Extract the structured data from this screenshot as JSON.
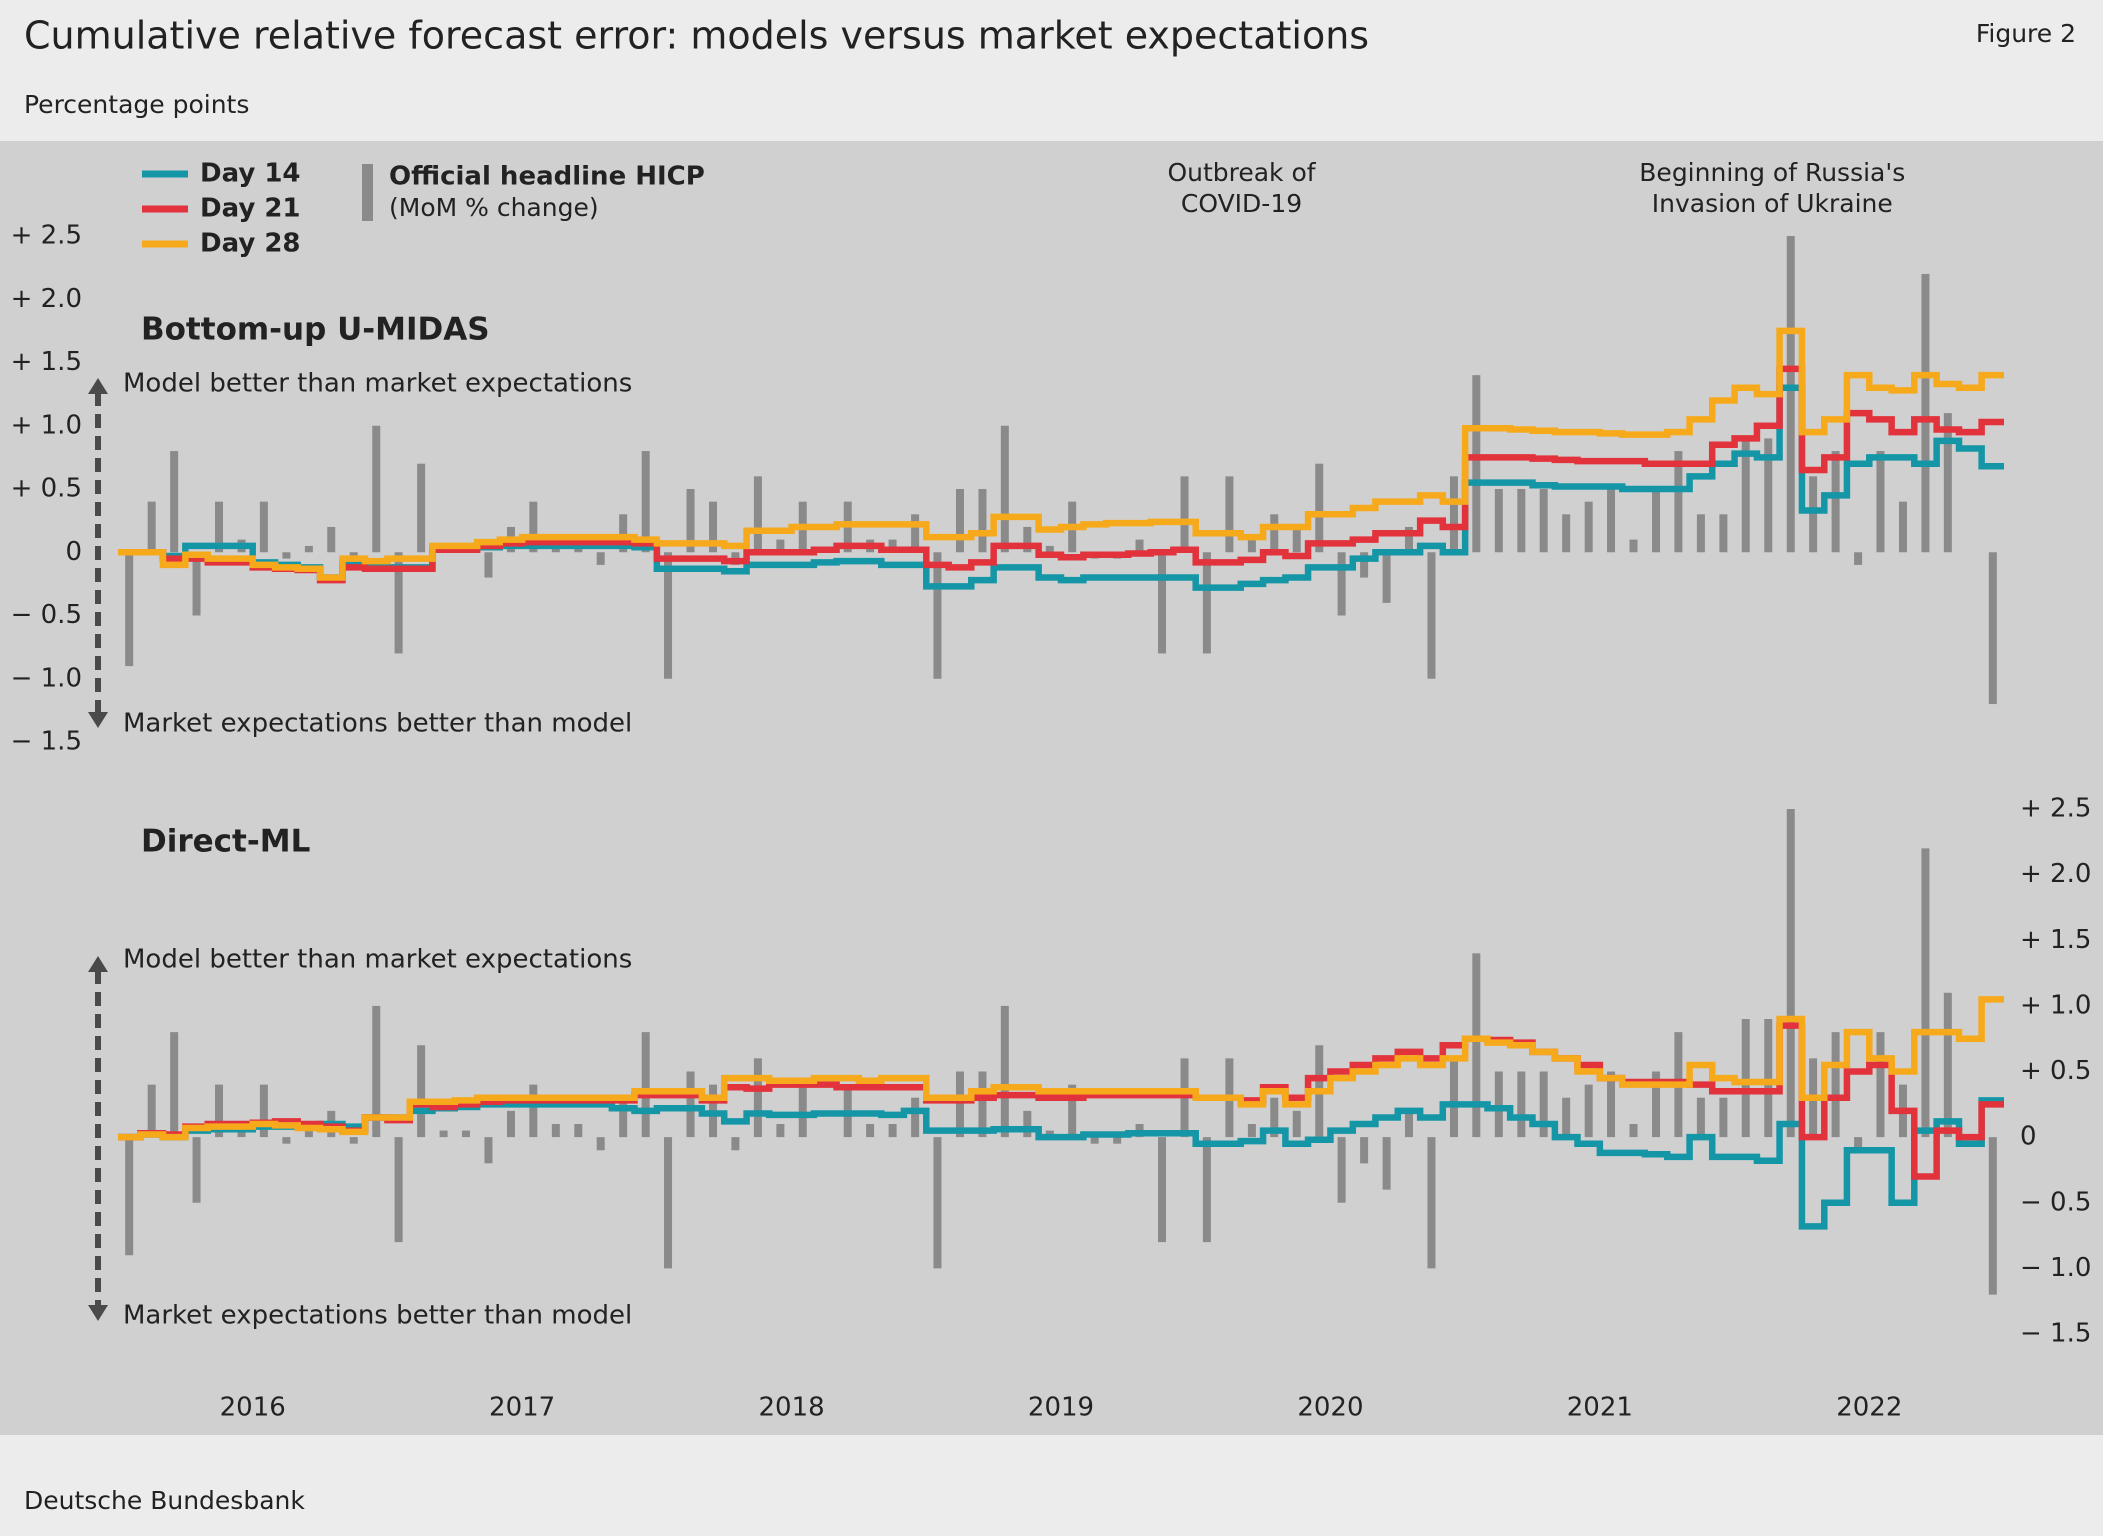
{
  "chart_data": {
    "type": "line",
    "title": "Cumulative relative forecast error: models versus market expectations",
    "subtitle": "Percentage points",
    "figure_label": "Figure 2",
    "source": "Deutsche Bundesbank",
    "xlim": [
      2016,
      2023
    ],
    "xticks": [
      {
        "value": 2016.5,
        "label": "2016"
      },
      {
        "value": 2017.5,
        "label": "2017"
      },
      {
        "value": 2018.5,
        "label": "2018"
      },
      {
        "value": 2019.5,
        "label": "2019"
      },
      {
        "value": 2020.5,
        "label": "2020"
      },
      {
        "value": 2021.5,
        "label": "2021"
      },
      {
        "value": 2022.5,
        "label": "2022"
      }
    ],
    "xgrid": [
      2016,
      2017,
      2018,
      2019,
      2020,
      2021,
      2022,
      2023
    ],
    "x": [
      2016,
      2016.083,
      2016.167,
      2016.25,
      2016.333,
      2016.417,
      2016.5,
      2016.583,
      2016.667,
      2016.75,
      2016.833,
      2016.917,
      2017,
      2017.083,
      2017.167,
      2017.25,
      2017.333,
      2017.417,
      2017.5,
      2017.583,
      2017.667,
      2017.75,
      2017.833,
      2017.917,
      2018,
      2018.083,
      2018.167,
      2018.25,
      2018.333,
      2018.417,
      2018.5,
      2018.583,
      2018.667,
      2018.75,
      2018.833,
      2018.917,
      2019,
      2019.083,
      2019.167,
      2019.25,
      2019.333,
      2019.417,
      2019.5,
      2019.583,
      2019.667,
      2019.75,
      2019.833,
      2019.917,
      2020,
      2020.083,
      2020.167,
      2020.25,
      2020.333,
      2020.417,
      2020.5,
      2020.583,
      2020.667,
      2020.75,
      2020.833,
      2020.917,
      2021,
      2021.083,
      2021.167,
      2021.25,
      2021.333,
      2021.417,
      2021.5,
      2021.583,
      2021.667,
      2021.75,
      2021.833,
      2021.917,
      2022,
      2022.083,
      2022.167,
      2022.25,
      2022.333,
      2022.417,
      2022.5,
      2022.583,
      2022.667,
      2022.75,
      2022.833,
      2022.917
    ],
    "series": [
      {
        "name": "Day 14",
        "color": "#1596a6"
      },
      {
        "name": "Day 21",
        "color": "#e2323b"
      },
      {
        "name": "Day 28",
        "color": "#f7a91c"
      }
    ],
    "bars": {
      "name": "Official headline HICP",
      "note": "(MoM % change)",
      "color": "#8a8a8a",
      "values": [
        -0.9,
        0.4,
        0.8,
        -0.5,
        0.4,
        0.1,
        0.4,
        -0.05,
        0.05,
        0.2,
        -0.05,
        1.0,
        -0.8,
        0.7,
        0.05,
        0.05,
        -0.2,
        0.2,
        0.4,
        0.1,
        0.1,
        -0.1,
        0.3,
        0.8,
        -1.0,
        0.5,
        0.4,
        -0.1,
        0.6,
        0.1,
        0.4,
        0,
        0.4,
        0.1,
        0.1,
        0.3,
        -1.0,
        0.5,
        0.5,
        1.0,
        0.2,
        0.05,
        0.4,
        -0.05,
        -0.05,
        0.1,
        -0.8,
        0.6,
        -0.8,
        0.6,
        0.1,
        0.3,
        0.2,
        0.7,
        -0.5,
        -0.2,
        -0.4,
        0.2,
        -1.0,
        0.6,
        1.4,
        0.5,
        0.5,
        0.5,
        0.3,
        0.4,
        0.5,
        0.1,
        0.5,
        0.8,
        0.3,
        0.3,
        0.9,
        0.9,
        2.5,
        0.6,
        0.8,
        -0.1,
        0.8,
        0.4,
        2.2,
        1.1,
        0,
        -1.2
      ]
    },
    "events": [
      {
        "x": 2020.17,
        "label": [
          "Outbreak of",
          "COVID-19"
        ]
      },
      {
        "x": 2022.14,
        "label": [
          "Beginning of Russia's",
          "Invasion of Ukraine"
        ]
      }
    ],
    "panels": [
      {
        "title": "Bottom-up U-MIDAS",
        "axis_side": "left",
        "annotation_up": "Model better than market expectations",
        "annotation_down": "Market expectations better than model",
        "ylim": [
          -1.5,
          2.5
        ],
        "yticks": [
          {
            "value": 2.5,
            "label": "+ 2.5"
          },
          {
            "value": 2,
            "label": "+ 2.0"
          },
          {
            "value": 1.5,
            "label": "+ 1.5"
          },
          {
            "value": 1,
            "label": "+ 1.0"
          },
          {
            "value": 0.5,
            "label": "+ 0.5"
          },
          0,
          {
            "value": -0.5,
            "label": "− 0.5"
          },
          {
            "value": -1,
            "label": "− 1.0"
          },
          {
            "value": -1.5,
            "label": "− 1.5"
          }
        ],
        "values": [
          [
            0,
            0,
            -0.03,
            0.05,
            0.05,
            0.05,
            -0.08,
            -0.1,
            -0.12,
            -0.2,
            -0.1,
            -0.1,
            -0.12,
            -0.12,
            0.03,
            0.03,
            0.04,
            0.05,
            0.05,
            0.05,
            0.05,
            0.05,
            0.05,
            0.04,
            -0.13,
            -0.13,
            -0.13,
            -0.15,
            -0.1,
            -0.1,
            -0.1,
            -0.08,
            -0.07,
            -0.07,
            -0.1,
            -0.1,
            -0.27,
            -0.27,
            -0.22,
            -0.12,
            -0.12,
            -0.2,
            -0.22,
            -0.2,
            -0.2,
            -0.2,
            -0.2,
            -0.2,
            -0.28,
            -0.28,
            -0.25,
            -0.22,
            -0.2,
            -0.12,
            -0.12,
            -0.05,
            0,
            0,
            0.05,
            0,
            0.55,
            0.55,
            0.55,
            0.53,
            0.52,
            0.52,
            0.52,
            0.5,
            0.5,
            0.5,
            0.6,
            0.7,
            0.78,
            0.75,
            1.3,
            0.33,
            0.45,
            0.7,
            0.75,
            0.75,
            0.7,
            0.88,
            0.82,
            0.68
          ],
          [
            0,
            0,
            -0.05,
            -0.05,
            -0.08,
            -0.08,
            -0.12,
            -0.13,
            -0.14,
            -0.22,
            -0.12,
            -0.13,
            -0.13,
            -0.13,
            0.02,
            0.02,
            0.05,
            0.07,
            0.08,
            0.08,
            0.08,
            0.08,
            0.08,
            0.07,
            -0.05,
            -0.05,
            -0.05,
            -0.07,
            0,
            0,
            0,
            0.02,
            0.05,
            0.05,
            0.02,
            0.02,
            -0.1,
            -0.12,
            -0.08,
            0.05,
            0.05,
            -0.02,
            -0.04,
            -0.02,
            -0.02,
            -0.01,
            0,
            0.02,
            -0.08,
            -0.08,
            -0.06,
            0,
            -0.03,
            0.07,
            0.07,
            0.1,
            0.15,
            0.15,
            0.25,
            0.2,
            0.75,
            0.75,
            0.75,
            0.74,
            0.73,
            0.72,
            0.72,
            0.72,
            0.7,
            0.7,
            0.7,
            0.85,
            0.9,
            1.0,
            1.45,
            0.65,
            0.75,
            1.1,
            1.05,
            0.95,
            1.05,
            0.97,
            0.95,
            1.03
          ],
          [
            0,
            0,
            -0.1,
            -0.02,
            -0.05,
            -0.05,
            -0.1,
            -0.12,
            -0.13,
            -0.2,
            -0.05,
            -0.07,
            -0.05,
            -0.05,
            0.05,
            0.05,
            0.08,
            0.1,
            0.12,
            0.12,
            0.12,
            0.12,
            0.12,
            0.1,
            0.07,
            0.07,
            0.07,
            0.05,
            0.17,
            0.17,
            0.2,
            0.2,
            0.22,
            0.22,
            0.22,
            0.22,
            0.12,
            0.12,
            0.15,
            0.28,
            0.28,
            0.18,
            0.2,
            0.22,
            0.23,
            0.23,
            0.24,
            0.24,
            0.15,
            0.15,
            0.12,
            0.2,
            0.2,
            0.3,
            0.3,
            0.35,
            0.4,
            0.4,
            0.45,
            0.4,
            0.98,
            0.98,
            0.97,
            0.96,
            0.95,
            0.95,
            0.94,
            0.93,
            0.93,
            0.95,
            1.05,
            1.2,
            1.3,
            1.25,
            1.75,
            0.95,
            1.05,
            1.4,
            1.3,
            1.28,
            1.4,
            1.33,
            1.3,
            1.4
          ]
        ]
      },
      {
        "title": "Direct-ML",
        "axis_side": "right",
        "annotation_up": "Model better than market expectations",
        "annotation_down": "Market expectations better than model",
        "ylim": [
          -1.5,
          2.5
        ],
        "yticks": [
          {
            "value": 2.5,
            "label": "+ 2.5"
          },
          {
            "value": 2,
            "label": "+ 2.0"
          },
          {
            "value": 1.5,
            "label": "+ 1.5"
          },
          {
            "value": 1,
            "label": "+ 1.0"
          },
          {
            "value": 0.5,
            "label": "+ 0.5"
          },
          0,
          {
            "value": -0.5,
            "label": "− 0.5"
          },
          {
            "value": -1,
            "label": "− 1.0"
          },
          {
            "value": -1.5,
            "label": "− 1.5"
          }
        ],
        "values": [
          [
            0,
            0.02,
            0,
            0.05,
            0.06,
            0.06,
            0.08,
            0.08,
            0.08,
            0.1,
            0.08,
            0.15,
            0.15,
            0.2,
            0.22,
            0.23,
            0.25,
            0.25,
            0.25,
            0.25,
            0.25,
            0.25,
            0.22,
            0.2,
            0.22,
            0.22,
            0.18,
            0.12,
            0.18,
            0.17,
            0.17,
            0.18,
            0.18,
            0.18,
            0.17,
            0.2,
            0.05,
            0.05,
            0.05,
            0.06,
            0.06,
            0,
            0,
            0.02,
            0.02,
            0.03,
            0.03,
            0.03,
            -0.05,
            -0.05,
            -0.03,
            0.05,
            -0.05,
            -0.02,
            0.05,
            0.1,
            0.15,
            0.2,
            0.15,
            0.25,
            0.25,
            0.22,
            0.15,
            0.1,
            0,
            -0.05,
            -0.12,
            -0.12,
            -0.13,
            -0.15,
            0,
            -0.15,
            -0.15,
            -0.18,
            0.1,
            -0.68,
            -0.5,
            -0.1,
            -0.1,
            -0.5,
            0.05,
            0.12,
            -0.05,
            0.28
          ],
          [
            0,
            0.03,
            0.02,
            0.08,
            0.1,
            0.1,
            0.11,
            0.12,
            0.1,
            0.08,
            0.05,
            0.15,
            0.13,
            0.25,
            0.23,
            0.25,
            0.27,
            0.28,
            0.28,
            0.28,
            0.28,
            0.28,
            0.28,
            0.32,
            0.32,
            0.32,
            0.28,
            0.38,
            0.37,
            0.4,
            0.4,
            0.4,
            0.38,
            0.38,
            0.38,
            0.38,
            0.28,
            0.28,
            0.3,
            0.32,
            0.32,
            0.3,
            0.3,
            0.32,
            0.32,
            0.32,
            0.32,
            0.32,
            0.3,
            0.3,
            0.28,
            0.38,
            0.3,
            0.45,
            0.5,
            0.55,
            0.6,
            0.65,
            0.6,
            0.7,
            0.75,
            0.74,
            0.72,
            0.65,
            0.6,
            0.55,
            0.45,
            0.42,
            0.42,
            0.42,
            0.4,
            0.35,
            0.35,
            0.35,
            0.85,
            0,
            0.3,
            0.5,
            0.55,
            0.2,
            -0.3,
            0.05,
            0,
            0.25
          ],
          [
            0,
            0.02,
            0,
            0.07,
            0.08,
            0.08,
            0.1,
            0.09,
            0.07,
            0.06,
            0.04,
            0.15,
            0.15,
            0.27,
            0.27,
            0.28,
            0.3,
            0.3,
            0.3,
            0.3,
            0.3,
            0.3,
            0.3,
            0.35,
            0.35,
            0.35,
            0.3,
            0.45,
            0.45,
            0.43,
            0.43,
            0.45,
            0.45,
            0.43,
            0.45,
            0.45,
            0.3,
            0.3,
            0.35,
            0.38,
            0.38,
            0.35,
            0.35,
            0.35,
            0.35,
            0.35,
            0.35,
            0.35,
            0.3,
            0.3,
            0.25,
            0.35,
            0.25,
            0.35,
            0.45,
            0.5,
            0.55,
            0.6,
            0.55,
            0.6,
            0.75,
            0.72,
            0.7,
            0.65,
            0.6,
            0.5,
            0.45,
            0.4,
            0.4,
            0.4,
            0.55,
            0.45,
            0.42,
            0.42,
            0.9,
            0.3,
            0.55,
            0.8,
            0.6,
            0.5,
            0.8,
            0.8,
            0.75,
            1.05
          ]
        ]
      }
    ]
  }
}
